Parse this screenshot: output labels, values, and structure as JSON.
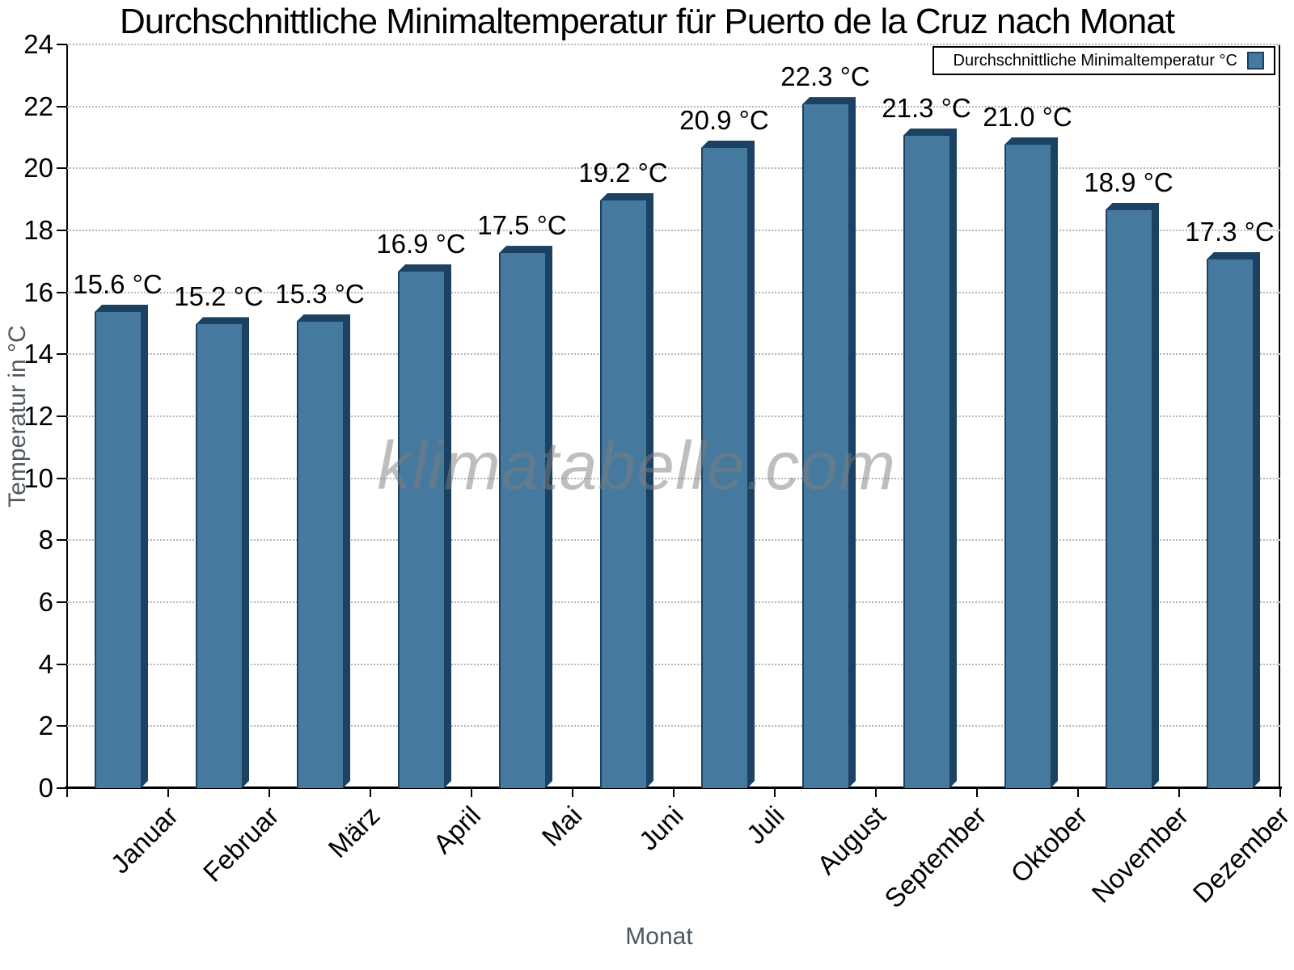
{
  "title": "Durchschnittliche Minimaltemperatur für Puerto de la Cruz nach Monat",
  "legend": {
    "label": "Durchschnittliche Minimaltemperatur °C",
    "swatch_color": "#46799E"
  },
  "watermark": "klimatabelle.com",
  "axes": {
    "xlabel": "Monat",
    "ylabel": "Temperatur in °C"
  },
  "colors": {
    "bar_face": "#46799E",
    "bar_edge": "#1B4163",
    "grid": "#b5b5b5",
    "axis_title_gray": "#4E5862"
  },
  "chart_data": {
    "type": "bar",
    "title": "Durchschnittliche Minimaltemperatur für Puerto de la Cruz nach Monat",
    "categories": [
      "Januar",
      "Februar",
      "März",
      "April",
      "Mai",
      "Juni",
      "Juli",
      "August",
      "September",
      "Oktober",
      "November",
      "Dezember"
    ],
    "values": [
      15.6,
      15.2,
      15.3,
      16.9,
      17.5,
      19.2,
      20.9,
      22.3,
      21.3,
      21.0,
      18.9,
      17.3
    ],
    "value_suffix": " °C",
    "xlabel": "Monat",
    "ylabel": "Temperatur in °C",
    "ylim": [
      0,
      24
    ],
    "yticks": [
      0,
      2,
      4,
      6,
      8,
      10,
      12,
      14,
      16,
      18,
      20,
      22,
      24
    ],
    "grid": "dotted-horizontal",
    "legend_position": "top-right",
    "legend_entries": [
      "Durchschnittliche Minimaltemperatur °C"
    ]
  }
}
